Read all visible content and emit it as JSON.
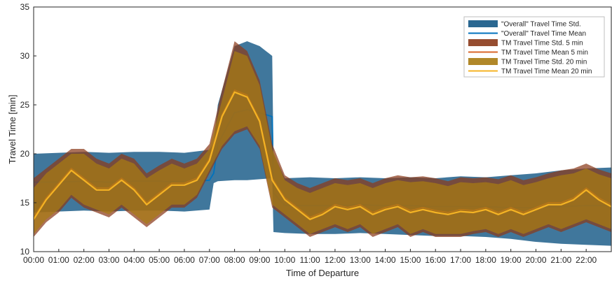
{
  "chart_data": {
    "type": "area",
    "xlabel": "Time of Departure",
    "ylabel": "Travel Time [min]",
    "xlim": [
      0,
      1380
    ],
    "ylim": [
      10,
      35
    ],
    "x_ticks": [
      "00:00",
      "01:00",
      "02:00",
      "03:00",
      "04:00",
      "05:00",
      "06:00",
      "07:00",
      "08:00",
      "09:00",
      "10:00",
      "11:00",
      "12:00",
      "13:00",
      "14:00",
      "15:00",
      "16:00",
      "17:00",
      "18:00",
      "19:00",
      "20:00",
      "21:00",
      "22:00"
    ],
    "y_ticks": [
      10,
      15,
      20,
      25,
      30,
      35
    ],
    "legend_position": "top-right",
    "grid": false,
    "series": [
      {
        "name": "\"Overall\" Travel Time Std.",
        "kind": "band",
        "color": "#1f5f8b",
        "x": [
          0,
          60,
          120,
          180,
          240,
          300,
          360,
          420,
          430,
          440,
          480,
          510,
          540,
          570,
          573,
          600,
          660,
          720,
          780,
          840,
          900,
          960,
          1020,
          1080,
          1140,
          1200,
          1260,
          1320,
          1380
        ],
        "upper": [
          20.0,
          20.1,
          20.2,
          20.1,
          20.2,
          20.2,
          20.1,
          20.4,
          21.0,
          25.0,
          31.0,
          31.5,
          31.0,
          30.0,
          20.0,
          17.5,
          17.6,
          17.5,
          17.6,
          17.5,
          17.6,
          17.5,
          17.7,
          17.6,
          17.8,
          18.0,
          18.3,
          18.5,
          18.6
        ],
        "lower": [
          14.0,
          14.1,
          14.2,
          14.1,
          14.2,
          14.2,
          14.1,
          14.3,
          17.0,
          17.2,
          17.3,
          17.3,
          17.4,
          17.5,
          12.0,
          11.9,
          11.8,
          11.8,
          11.9,
          11.8,
          11.7,
          11.6,
          11.6,
          11.5,
          11.3,
          11.0,
          10.8,
          10.7,
          10.6
        ]
      },
      {
        "name": "\"Overall\" Travel Time Mean",
        "kind": "line",
        "color": "#0072bd",
        "x": [
          0,
          60,
          120,
          180,
          240,
          300,
          360,
          420,
          430,
          440,
          480,
          510,
          540,
          570,
          573,
          600,
          660,
          720,
          780,
          840,
          900,
          960,
          1020,
          1080,
          1140,
          1200,
          1260,
          1320,
          1380
        ],
        "y": [
          17.1,
          17.1,
          17.2,
          17.1,
          17.2,
          17.2,
          17.1,
          17.3,
          18.0,
          21.0,
          24.2,
          24.5,
          24.2,
          23.8,
          16.0,
          14.7,
          14.7,
          14.7,
          14.8,
          14.7,
          14.7,
          14.6,
          14.6,
          14.6,
          14.5,
          14.5,
          14.6,
          14.7,
          14.7
        ]
      },
      {
        "name": "TM Travel Time Std. 5 min",
        "kind": "band",
        "color": "#8b3a1a",
        "x": [
          0,
          30,
          60,
          90,
          120,
          150,
          180,
          210,
          240,
          270,
          300,
          330,
          360,
          390,
          420,
          450,
          480,
          510,
          540,
          570,
          600,
          630,
          660,
          690,
          720,
          750,
          780,
          810,
          840,
          870,
          900,
          930,
          960,
          990,
          1020,
          1050,
          1080,
          1110,
          1140,
          1170,
          1200,
          1230,
          1260,
          1290,
          1320,
          1350,
          1380
        ],
        "upper": [
          17.5,
          18.5,
          19.5,
          20.5,
          20.5,
          19.5,
          19.0,
          20.0,
          19.5,
          18.0,
          18.8,
          19.5,
          19.0,
          19.5,
          21.0,
          26.5,
          31.5,
          30.5,
          27.5,
          21.0,
          17.8,
          17.0,
          16.5,
          17.0,
          17.5,
          17.3,
          17.5,
          17.0,
          17.5,
          17.8,
          17.6,
          17.7,
          17.5,
          17.2,
          17.6,
          17.5,
          17.6,
          17.4,
          17.8,
          17.3,
          17.6,
          18.0,
          18.3,
          18.5,
          19.0,
          18.4,
          18.0
        ],
        "lower": [
          11.5,
          13.0,
          14.0,
          15.5,
          14.5,
          14.0,
          13.5,
          14.5,
          13.5,
          12.5,
          13.5,
          14.5,
          14.5,
          15.5,
          18.0,
          20.5,
          22.0,
          22.5,
          20.5,
          14.5,
          13.5,
          12.5,
          11.5,
          12.0,
          12.5,
          12.0,
          12.5,
          11.5,
          12.0,
          12.5,
          11.5,
          12.0,
          11.5,
          11.5,
          11.5,
          11.8,
          12.0,
          11.5,
          12.0,
          11.5,
          12.0,
          12.5,
          12.0,
          12.5,
          13.0,
          12.5,
          12.0
        ]
      },
      {
        "name": "TM Travel Time Mean 5 min",
        "kind": "line",
        "color": "#d9662a",
        "x": [
          0,
          30,
          60,
          90,
          120,
          150,
          180,
          210,
          240,
          270,
          300,
          330,
          360,
          390,
          420,
          450,
          480,
          510,
          540,
          570,
          600,
          630,
          660,
          690,
          720,
          750,
          780,
          810,
          840,
          870,
          900,
          930,
          960,
          990,
          1020,
          1050,
          1080,
          1110,
          1140,
          1170,
          1200,
          1230,
          1260,
          1290,
          1320,
          1350,
          1380
        ],
        "y": [
          13.5,
          15.5,
          17.0,
          18.5,
          17.5,
          16.5,
          16.5,
          17.5,
          16.5,
          15.0,
          16.0,
          17.0,
          17.0,
          17.5,
          19.5,
          24.0,
          26.5,
          26.0,
          23.5,
          17.5,
          15.5,
          14.5,
          13.5,
          14.0,
          14.8,
          14.5,
          14.8,
          14.0,
          14.5,
          14.8,
          14.2,
          14.5,
          14.2,
          14.0,
          14.3,
          14.2,
          14.5,
          14.0,
          14.5,
          14.0,
          14.5,
          15.0,
          15.0,
          15.5,
          16.5,
          15.5,
          14.8
        ]
      },
      {
        "name": "TM Travel Time Std. 20 min",
        "kind": "band",
        "color": "#a87b12",
        "x": [
          0,
          30,
          60,
          90,
          120,
          150,
          180,
          210,
          240,
          270,
          300,
          330,
          360,
          390,
          420,
          450,
          480,
          510,
          540,
          570,
          600,
          630,
          660,
          690,
          720,
          750,
          780,
          810,
          840,
          870,
          900,
          930,
          960,
          990,
          1020,
          1050,
          1080,
          1110,
          1140,
          1170,
          1200,
          1230,
          1260,
          1290,
          1320,
          1350,
          1380
        ],
        "upper": [
          16.5,
          18.0,
          19.0,
          20.0,
          20.0,
          19.0,
          18.5,
          19.5,
          19.0,
          17.5,
          18.3,
          19.0,
          18.5,
          19.0,
          20.5,
          25.5,
          30.5,
          30.0,
          27.0,
          20.5,
          17.3,
          16.5,
          16.0,
          16.5,
          17.0,
          16.8,
          17.0,
          16.5,
          17.0,
          17.3,
          17.1,
          17.2,
          17.0,
          16.7,
          17.1,
          17.0,
          17.1,
          16.9,
          17.3,
          16.8,
          17.1,
          17.5,
          17.8,
          18.0,
          18.5,
          17.9,
          17.5
        ],
        "lower": [
          11.8,
          13.3,
          14.3,
          15.8,
          14.8,
          14.3,
          13.8,
          14.8,
          13.8,
          12.8,
          13.8,
          14.8,
          14.8,
          15.8,
          18.3,
          20.8,
          22.3,
          22.8,
          20.8,
          14.8,
          13.8,
          12.8,
          11.8,
          12.3,
          12.8,
          12.3,
          12.8,
          11.8,
          12.3,
          12.8,
          11.8,
          12.3,
          11.8,
          11.8,
          11.8,
          12.1,
          12.3,
          11.8,
          12.3,
          11.8,
          12.3,
          12.8,
          12.3,
          12.8,
          13.3,
          12.8,
          12.3
        ]
      },
      {
        "name": "TM Travel Time Mean 20 min",
        "kind": "line",
        "color": "#f5b324",
        "x": [
          0,
          30,
          60,
          90,
          120,
          150,
          180,
          210,
          240,
          270,
          300,
          330,
          360,
          390,
          420,
          450,
          480,
          510,
          540,
          570,
          600,
          630,
          660,
          690,
          720,
          750,
          780,
          810,
          840,
          870,
          900,
          930,
          960,
          990,
          1020,
          1050,
          1080,
          1110,
          1140,
          1170,
          1200,
          1230,
          1260,
          1290,
          1320,
          1350,
          1380
        ],
        "y": [
          13.3,
          15.3,
          16.8,
          18.3,
          17.3,
          16.3,
          16.3,
          17.3,
          16.3,
          14.8,
          15.8,
          16.8,
          16.8,
          17.3,
          19.3,
          23.8,
          26.3,
          25.8,
          23.3,
          17.3,
          15.3,
          14.3,
          13.3,
          13.8,
          14.6,
          14.3,
          14.6,
          13.8,
          14.3,
          14.6,
          14.0,
          14.3,
          14.0,
          13.8,
          14.1,
          14.0,
          14.3,
          13.8,
          14.3,
          13.8,
          14.3,
          14.8,
          14.8,
          15.3,
          16.3,
          15.3,
          14.6
        ]
      }
    ]
  }
}
